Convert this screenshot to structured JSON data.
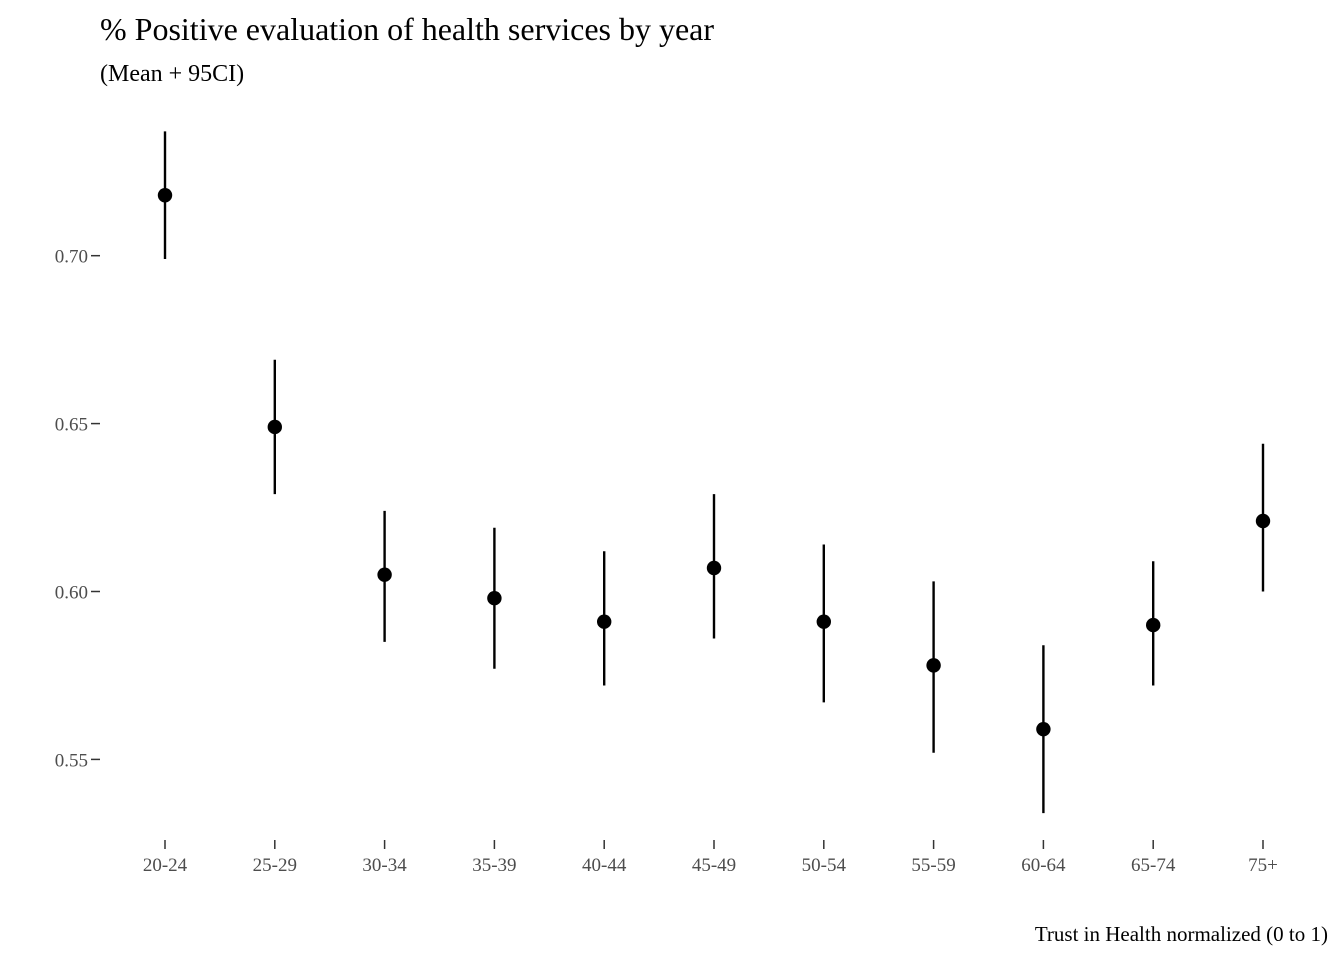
{
  "chart_data": {
    "type": "scatter",
    "title": "% Positive evaluation of health services by year",
    "subtitle": "(Mean + 95CI)",
    "xlabel": "Trust in Health normalized (0 to 1)",
    "ylabel": "",
    "ylim": [
      0.526,
      0.741
    ],
    "yticks": [
      0.55,
      0.6,
      0.65,
      0.7
    ],
    "ytick_labels": [
      "0.55",
      "0.60",
      "0.65",
      "0.70"
    ],
    "grid": false,
    "legend": "none",
    "point_color": "#000000",
    "categories": [
      "20-24",
      "25-29",
      "30-34",
      "35-39",
      "40-44",
      "45-49",
      "50-54",
      "55-59",
      "60-64",
      "65-74",
      "75+"
    ],
    "series": [
      {
        "values": [
          0.718,
          0.649,
          0.605,
          0.598,
          0.591,
          0.607,
          0.591,
          0.578,
          0.559,
          0.59,
          0.621
        ],
        "lower": [
          0.699,
          0.629,
          0.585,
          0.577,
          0.572,
          0.586,
          0.567,
          0.552,
          0.534,
          0.572,
          0.6
        ],
        "upper": [
          0.737,
          0.669,
          0.624,
          0.619,
          0.612,
          0.629,
          0.614,
          0.603,
          0.584,
          0.609,
          0.644
        ]
      }
    ]
  }
}
